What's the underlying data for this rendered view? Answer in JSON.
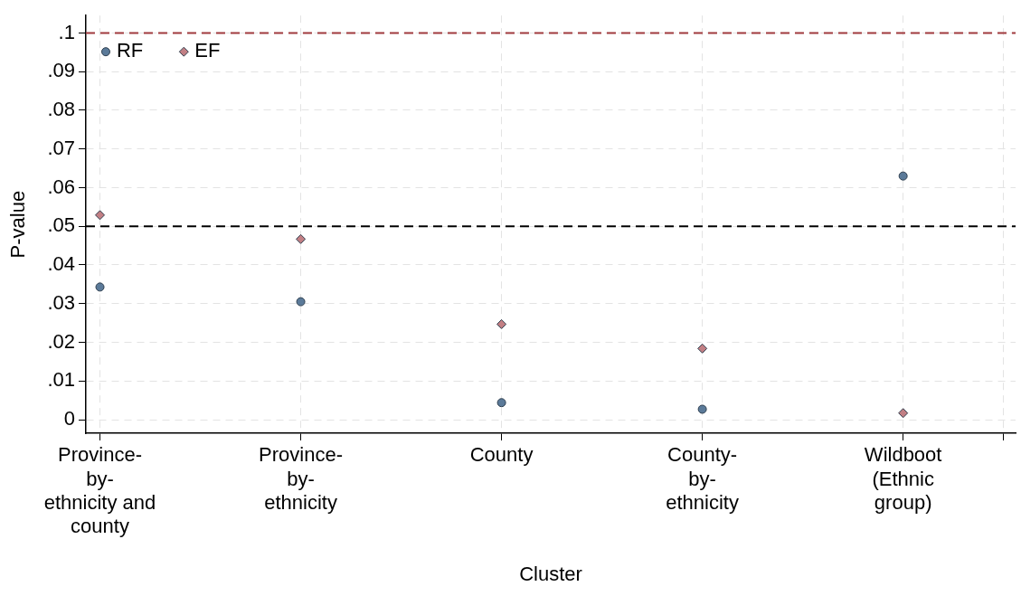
{
  "chart_data": {
    "type": "scatter",
    "xlabel": "Cluster",
    "ylabel": "P-value",
    "categories": [
      "Province-by-ethnicity and county",
      "Province-by-ethnicity",
      "County",
      "County-by-ethnicity",
      "Wildboot (Ethnic group)"
    ],
    "ylim": [
      -0.0035,
      0.1045
    ],
    "yticks": [
      {
        "value": 0,
        "label": "0"
      },
      {
        "value": 0.01,
        "label": ".01"
      },
      {
        "value": 0.02,
        "label": ".02"
      },
      {
        "value": 0.03,
        "label": ".03"
      },
      {
        "value": 0.04,
        "label": ".04"
      },
      {
        "value": 0.05,
        "label": ".05"
      },
      {
        "value": 0.06,
        "label": ".06"
      },
      {
        "value": 0.07,
        "label": ".07"
      },
      {
        "value": 0.08,
        "label": ".08"
      },
      {
        "value": 0.09,
        "label": ".09"
      },
      {
        "value": 0.1,
        "label": ".1"
      }
    ],
    "series": [
      {
        "name": "RF",
        "color": "#5b7a99",
        "marker": "circle",
        "values": [
          0.0343,
          0.0305,
          0.0044,
          0.0027,
          0.063
        ]
      },
      {
        "name": "EF",
        "color": "#c27f84",
        "marker": "diamond",
        "values": [
          0.0529,
          0.0467,
          0.0247,
          0.0184,
          0.0017
        ]
      }
    ],
    "ref_lines": [
      {
        "axis": "y",
        "value": 0.05,
        "color": "#000000",
        "line_style": "dashed"
      },
      {
        "axis": "y",
        "value": 0.1,
        "color": "#a03a3e",
        "line_style": "dashed"
      }
    ],
    "grid": true,
    "legend": "top left"
  }
}
